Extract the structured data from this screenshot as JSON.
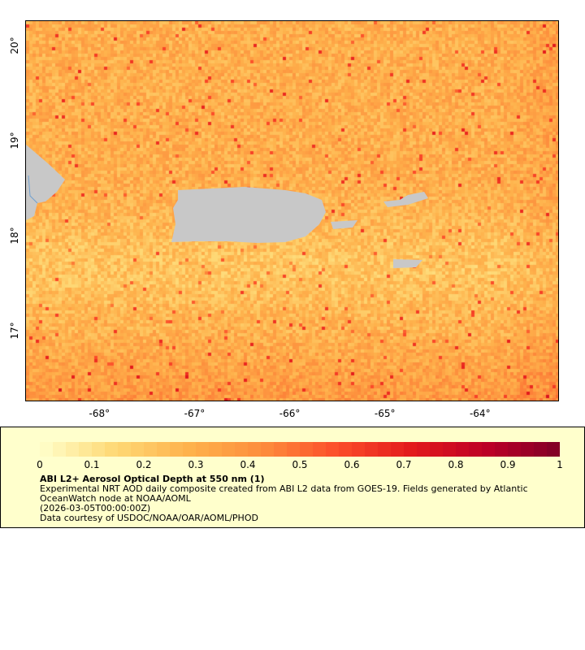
{
  "map": {
    "lat_ticks": [
      {
        "v": 20,
        "label": "20°"
      },
      {
        "v": 19,
        "label": "19°"
      },
      {
        "v": 18,
        "label": "18°"
      },
      {
        "v": 17,
        "label": "17°"
      }
    ],
    "lon_ticks": [
      {
        "v": -68,
        "label": "-68°"
      },
      {
        "v": -67,
        "label": "-67°"
      },
      {
        "v": -66,
        "label": "-66°"
      },
      {
        "v": -65,
        "label": "-65°"
      },
      {
        "v": -64,
        "label": "-64°"
      }
    ],
    "lon_range": [
      -68.78,
      -63.17
    ],
    "lat_range": [
      16.27,
      20.27
    ],
    "land_color": "#c8c8c8",
    "missing_color": "#808080"
  },
  "legend": {
    "colorbar": {
      "min": 0,
      "max": 1,
      "colors": [
        "#ffffcc",
        "#fed976",
        "#feb24c",
        "#fd8d3c",
        "#fc4e2a",
        "#e31a1c",
        "#bd0026",
        "#800026"
      ],
      "labels": [
        "0",
        "0.1",
        "0.2",
        "0.3",
        "0.4",
        "0.5",
        "0.6",
        "0.7",
        "0.8",
        "0.9",
        "1"
      ]
    },
    "title": "ABI L2+ Aerosol Optical Depth at 550 nm (1)",
    "line1": "Experimental NRT AOD daily composite created from ABI L2 data from GOES-19. Fields generated by Atlantic",
    "line2": "OceanWatch node at NOAA/AOML",
    "time": "(2026-03-05T00:00:00Z)",
    "credit": "Data courtesy of USDOC/NOAA/OAR/AOML/PHOD"
  }
}
